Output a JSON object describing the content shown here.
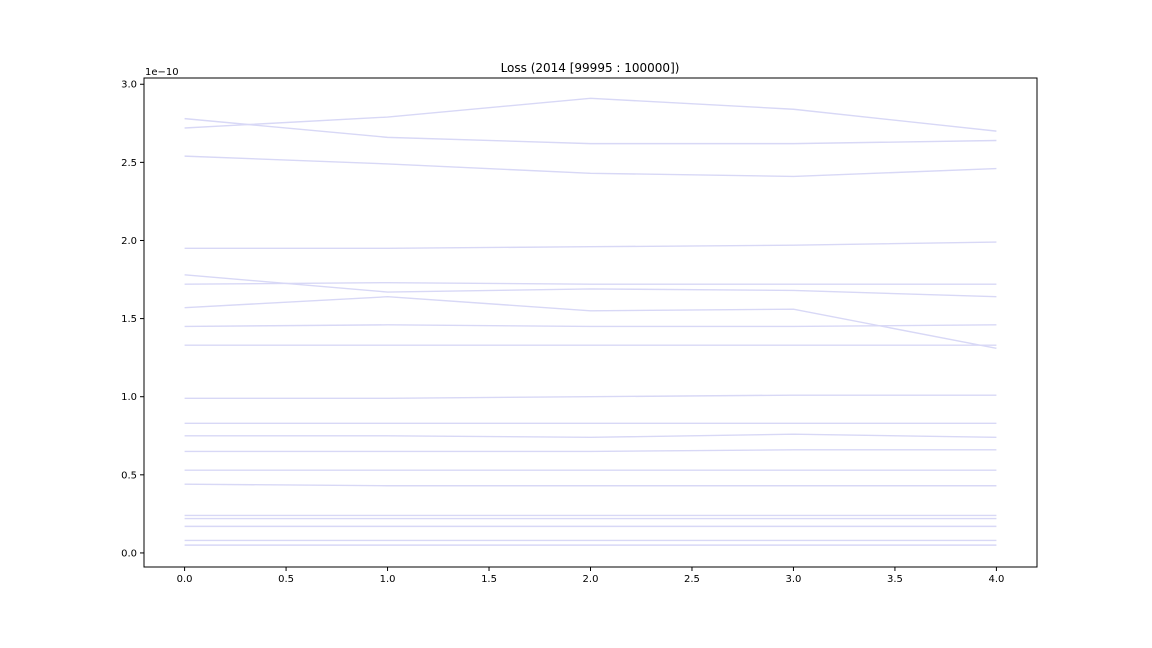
{
  "chart_data": {
    "type": "line",
    "title": "Loss (2014 [99995 : 100000])",
    "xlabel": "",
    "ylabel": "",
    "y_offset_text": "1e−10",
    "xlim": [
      -0.2,
      4.2
    ],
    "ylim": [
      -0.09,
      3.04
    ],
    "x_ticks": [
      0.0,
      0.5,
      1.0,
      1.5,
      2.0,
      2.5,
      3.0,
      3.5,
      4.0
    ],
    "x_tick_labels": [
      "0.0",
      "0.5",
      "1.0",
      "1.5",
      "2.0",
      "2.5",
      "3.0",
      "3.5",
      "4.0"
    ],
    "y_ticks": [
      0.0,
      0.5,
      1.0,
      1.5,
      2.0,
      2.5,
      3.0
    ],
    "y_tick_labels": [
      "0.0",
      "0.5",
      "1.0",
      "1.5",
      "2.0",
      "2.5",
      "3.0"
    ],
    "grid": false,
    "line_color": "#d8d8f6",
    "x": [
      0,
      1,
      2,
      3,
      4
    ],
    "series": [
      {
        "values": [
          2.72,
          2.79,
          2.91,
          2.84,
          2.7
        ]
      },
      {
        "values": [
          2.78,
          2.66,
          2.62,
          2.62,
          2.64
        ]
      },
      {
        "values": [
          2.54,
          2.49,
          2.43,
          2.41,
          2.46
        ]
      },
      {
        "values": [
          1.95,
          1.95,
          1.96,
          1.97,
          1.99
        ]
      },
      {
        "values": [
          1.78,
          1.67,
          1.69,
          1.68,
          1.64
        ]
      },
      {
        "values": [
          1.72,
          1.73,
          1.72,
          1.72,
          1.72
        ]
      },
      {
        "values": [
          1.57,
          1.64,
          1.55,
          1.56,
          1.31
        ]
      },
      {
        "values": [
          1.45,
          1.46,
          1.45,
          1.45,
          1.46
        ]
      },
      {
        "values": [
          1.33,
          1.33,
          1.33,
          1.33,
          1.33
        ]
      },
      {
        "values": [
          0.99,
          0.99,
          1.0,
          1.01,
          1.01
        ]
      },
      {
        "values": [
          0.83,
          0.83,
          0.83,
          0.83,
          0.83
        ]
      },
      {
        "values": [
          0.75,
          0.75,
          0.74,
          0.76,
          0.74
        ]
      },
      {
        "values": [
          0.65,
          0.65,
          0.65,
          0.66,
          0.66
        ]
      },
      {
        "values": [
          0.53,
          0.53,
          0.53,
          0.53,
          0.53
        ]
      },
      {
        "values": [
          0.44,
          0.43,
          0.43,
          0.43,
          0.43
        ]
      },
      {
        "values": [
          0.24,
          0.24,
          0.24,
          0.24,
          0.24
        ]
      },
      {
        "values": [
          0.22,
          0.22,
          0.22,
          0.22,
          0.22
        ]
      },
      {
        "values": [
          0.17,
          0.17,
          0.17,
          0.17,
          0.17
        ]
      },
      {
        "values": [
          0.08,
          0.08,
          0.08,
          0.08,
          0.08
        ]
      },
      {
        "values": [
          0.05,
          0.05,
          0.05,
          0.05,
          0.05
        ]
      }
    ]
  }
}
